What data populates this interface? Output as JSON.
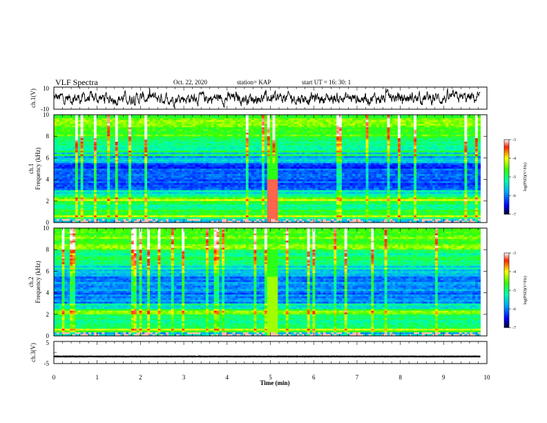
{
  "header": {
    "title": "VLF Spectra",
    "date": "Oct. 22, 2020",
    "station": "station= KAP",
    "start": "start  UT  =   16: 30: 1"
  },
  "chart_data": [
    {
      "type": "line",
      "name": "ch1-waveform",
      "ylabel": "ch.1(V)",
      "ylim": [
        -10,
        10
      ],
      "yticks": [
        "10",
        "-10"
      ],
      "xlim": [
        0,
        10
      ],
      "color": "#000000"
    },
    {
      "type": "heatmap",
      "name": "ch1-spectrogram",
      "ylabel": "ch.1\nFrequency  (kHz)",
      "ylim": [
        0,
        10
      ],
      "yticks": [
        "0",
        "2",
        "4",
        "6",
        "8",
        "10"
      ],
      "xlim": [
        0,
        10
      ],
      "data_end_min": 9.85,
      "burst": {
        "t_start": 4.9,
        "t_end": 5.2,
        "f_top_khz": 4.0
      },
      "colorbar": {
        "label": "log(PSD)(V²/Hz)",
        "range": [
          -7,
          -3
        ],
        "ticks": [
          "-3",
          "-4",
          "-5",
          "-6",
          "-7"
        ]
      }
    },
    {
      "type": "heatmap",
      "name": "ch2-spectrogram",
      "ylabel": "ch.2\nFrequency  (kHz)",
      "ylim": [
        0,
        10
      ],
      "yticks": [
        "0",
        "2",
        "4",
        "6",
        "8",
        "10"
      ],
      "xlim": [
        0,
        10
      ],
      "data_end_min": 9.85,
      "burst": {
        "t_start": 4.9,
        "t_end": 5.2,
        "f_top_khz": 5.5
      },
      "colorbar": {
        "label": "log(PSD)(V²/Hz)",
        "range": [
          -7,
          -3
        ],
        "ticks": [
          "-3",
          "-4",
          "-5",
          "-6",
          "-7"
        ]
      }
    },
    {
      "type": "line",
      "name": "ch3-waveform",
      "ylabel": "ch.3(V)",
      "ylim": [
        -5,
        5
      ],
      "yticks": [
        "5",
        "0",
        "-5"
      ],
      "xlim": [
        0,
        10
      ],
      "level_v": -1.8,
      "color": "#000000"
    }
  ],
  "xaxis": {
    "label": "Time  (min)",
    "ticks": [
      "0",
      "1",
      "2",
      "3",
      "4",
      "5",
      "6",
      "7",
      "8",
      "9",
      "10"
    ]
  }
}
